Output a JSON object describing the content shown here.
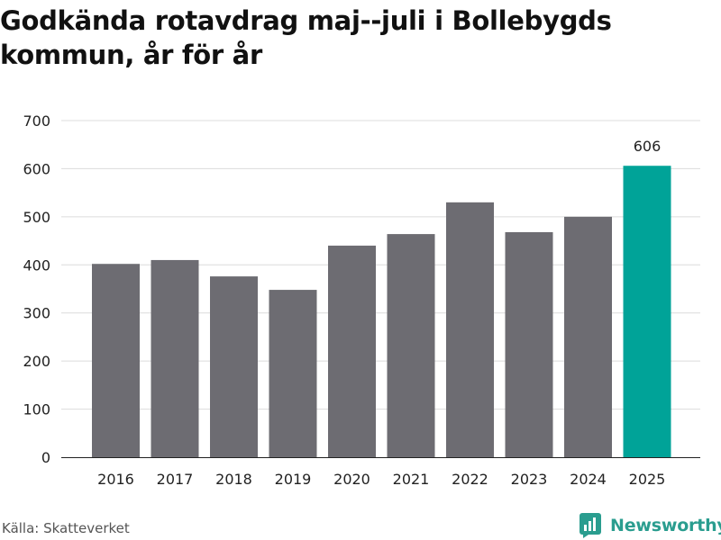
{
  "title": "Godkända rotavdrag maj--juli i Bollebygds kommun, år för år",
  "source": "Källa: Skatteverket",
  "brand": {
    "name": "Newsworthy",
    "icon": "bar-chart-logo-icon",
    "color": "#2a9d8f"
  },
  "chart_data": {
    "type": "bar",
    "categories": [
      "2016",
      "2017",
      "2018",
      "2019",
      "2020",
      "2021",
      "2022",
      "2023",
      "2024",
      "2025"
    ],
    "values": [
      402,
      410,
      376,
      348,
      440,
      464,
      530,
      468,
      500,
      606
    ],
    "highlight_index": 9,
    "highlight_label": "606",
    "bar_color": "#6d6c72",
    "highlight_color": "#00a398",
    "ylim": [
      0,
      700
    ],
    "yticks": [
      0,
      100,
      200,
      300,
      400,
      500,
      600,
      700
    ],
    "grid": true,
    "xlabel": "",
    "ylabel": ""
  }
}
